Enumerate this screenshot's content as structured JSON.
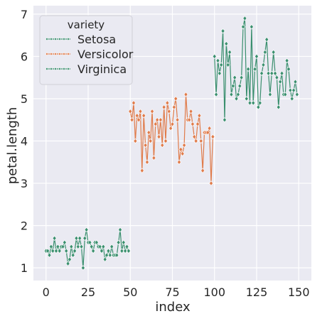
{
  "chart_data": {
    "type": "line",
    "xlabel": "index",
    "ylabel": "petal.length",
    "xlim": [
      -7.5,
      157.5
    ],
    "ylim": [
      0.7,
      7.2
    ],
    "xticks": [
      0,
      25,
      50,
      75,
      100,
      125,
      150
    ],
    "yticks": [
      1,
      2,
      3,
      4,
      5,
      6,
      7
    ],
    "grid": true,
    "legend": {
      "title": "variety",
      "position": "upper-left"
    },
    "series": [
      {
        "name": "Setosa",
        "color": "#3a8f6e",
        "marker": "diamond",
        "x": [
          0,
          1,
          2,
          3,
          4,
          5,
          6,
          7,
          8,
          9,
          10,
          11,
          12,
          13,
          14,
          15,
          16,
          17,
          18,
          19,
          20,
          21,
          22,
          23,
          24,
          25,
          26,
          27,
          28,
          29,
          30,
          31,
          32,
          33,
          34,
          35,
          36,
          37,
          38,
          39,
          40,
          41,
          42,
          43,
          44,
          45,
          46,
          47,
          48,
          49
        ],
        "values": [
          1.4,
          1.4,
          1.3,
          1.5,
          1.4,
          1.7,
          1.4,
          1.5,
          1.4,
          1.5,
          1.5,
          1.6,
          1.4,
          1.1,
          1.2,
          1.5,
          1.3,
          1.4,
          1.7,
          1.5,
          1.7,
          1.5,
          1.0,
          1.7,
          1.9,
          1.6,
          1.6,
          1.5,
          1.4,
          1.6,
          1.6,
          1.5,
          1.5,
          1.4,
          1.5,
          1.2,
          1.3,
          1.4,
          1.3,
          1.5,
          1.3,
          1.3,
          1.3,
          1.6,
          1.9,
          1.4,
          1.6,
          1.4,
          1.5,
          1.4
        ]
      },
      {
        "name": "Versicolor",
        "color": "#e07b4a",
        "marker": "diamond",
        "x": [
          50,
          51,
          52,
          53,
          54,
          55,
          56,
          57,
          58,
          59,
          60,
          61,
          62,
          63,
          64,
          65,
          66,
          67,
          68,
          69,
          70,
          71,
          72,
          73,
          74,
          75,
          76,
          77,
          78,
          79,
          80,
          81,
          82,
          83,
          84,
          85,
          86,
          87,
          88,
          89,
          90,
          91,
          92,
          93,
          94,
          95,
          96,
          97,
          98,
          99
        ],
        "values": [
          4.7,
          4.5,
          4.9,
          4.0,
          4.6,
          4.5,
          4.7,
          3.3,
          4.6,
          3.9,
          3.5,
          4.2,
          4.0,
          4.7,
          3.6,
          4.4,
          4.5,
          4.1,
          4.5,
          3.9,
          4.8,
          4.0,
          4.9,
          4.7,
          4.3,
          4.4,
          4.8,
          5.0,
          4.5,
          3.5,
          3.8,
          3.7,
          3.9,
          5.1,
          4.5,
          4.5,
          4.7,
          4.4,
          4.1,
          4.0,
          4.4,
          4.6,
          4.0,
          3.3,
          4.2,
          4.2,
          4.2,
          4.3,
          3.0,
          4.1
        ]
      },
      {
        "name": "Virginica",
        "color": "#3a8f6e",
        "marker": "diamond",
        "x": [
          100,
          101,
          102,
          103,
          104,
          105,
          106,
          107,
          108,
          109,
          110,
          111,
          112,
          113,
          114,
          115,
          116,
          117,
          118,
          119,
          120,
          121,
          122,
          123,
          124,
          125,
          126,
          127,
          128,
          129,
          130,
          131,
          132,
          133,
          134,
          135,
          136,
          137,
          138,
          139,
          140,
          141,
          142,
          143,
          144,
          145,
          146,
          147,
          148,
          149
        ],
        "values": [
          6.0,
          5.1,
          5.9,
          5.6,
          5.8,
          6.6,
          4.5,
          6.3,
          5.8,
          6.1,
          5.1,
          5.3,
          5.5,
          5.0,
          5.1,
          5.3,
          5.5,
          6.7,
          6.9,
          5.0,
          5.7,
          4.9,
          6.7,
          4.9,
          5.7,
          6.0,
          4.8,
          4.9,
          5.6,
          5.8,
          6.1,
          6.4,
          5.6,
          5.1,
          5.6,
          6.1,
          5.6,
          5.5,
          4.8,
          5.4,
          5.6,
          5.1,
          5.1,
          5.9,
          5.7,
          5.2,
          5.0,
          5.2,
          5.4,
          5.1
        ]
      }
    ]
  }
}
